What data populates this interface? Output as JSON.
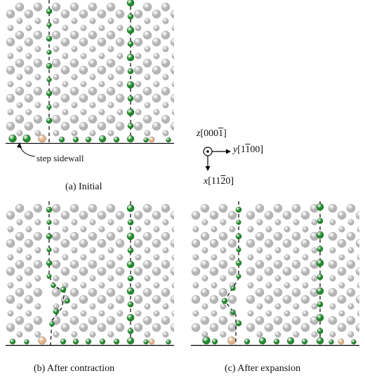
{
  "captions": {
    "a": "(a) Initial",
    "b": "(b) After contraction",
    "c": "(c) After expansion"
  },
  "annotation": {
    "step_sidewall": "step sidewall"
  },
  "axes": {
    "z": {
      "symbol": "z",
      "index_pre": "[000",
      "index_bar": "1",
      "index_post": "]"
    },
    "y": {
      "symbol": "y",
      "index_pre": "[1",
      "index_bar": "1",
      "index_post": "00]"
    },
    "x": {
      "symbol": "x",
      "index_pre": "[11",
      "index_bar": "2",
      "index_post": "0]"
    }
  },
  "colors": {
    "gray_atom": "#b4b4b4",
    "green_atom": "#1f8a2a",
    "orange_atom": "#e3b283",
    "dashed_line": "#111111",
    "baseline": "#000000"
  }
}
